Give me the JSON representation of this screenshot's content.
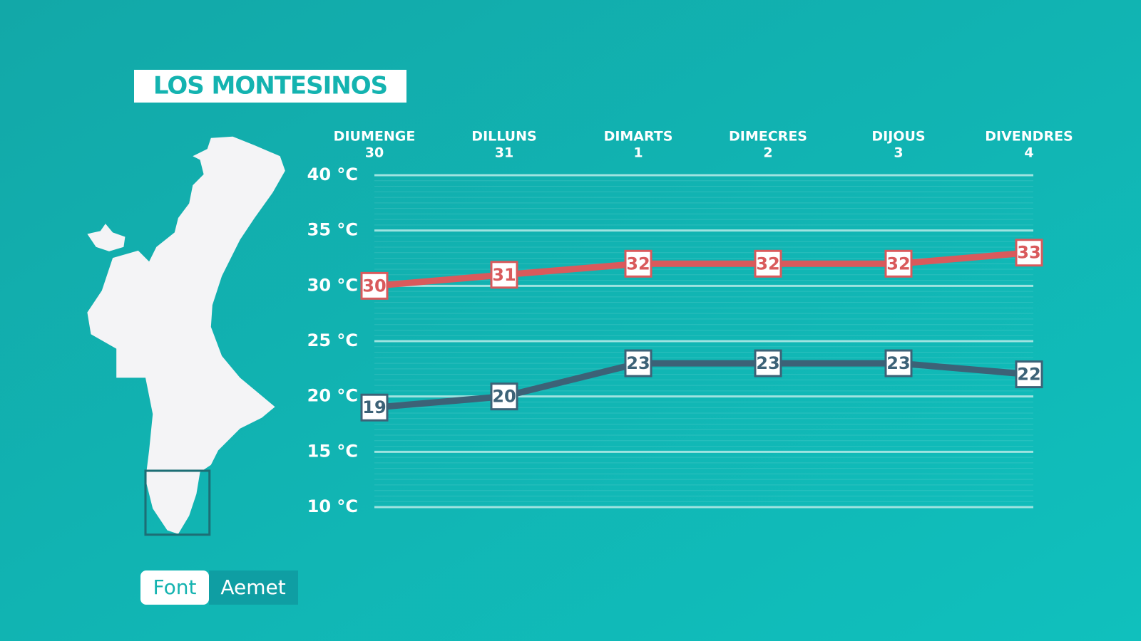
{
  "title": "LOS MONTESINOS",
  "source": {
    "label": "Font",
    "name": "Aemet"
  },
  "chart_data": {
    "type": "line",
    "categories": [
      "DIUMENGE",
      "DILLUNS",
      "DIMARTS",
      "DIMECRES",
      "DIJOUS",
      "DIVENDRES"
    ],
    "dates": [
      30,
      31,
      1,
      2,
      3,
      4
    ],
    "series": [
      {
        "color": "#d95a5c",
        "values": [
          30,
          31,
          32,
          32,
          32,
          33
        ]
      },
      {
        "color": "#3c6277",
        "values": [
          19,
          20,
          23,
          23,
          23,
          22
        ]
      }
    ],
    "ylim": [
      10,
      40
    ],
    "yticks": [
      {
        "value": 10,
        "label": "10 °C"
      },
      {
        "value": 15,
        "label": "15 °C"
      },
      {
        "value": 20,
        "label": "20 °C"
      },
      {
        "value": 25,
        "label": "25 °C"
      },
      {
        "value": 30,
        "label": "30 °C"
      },
      {
        "value": 35,
        "label": "35 °C"
      },
      {
        "value": 40,
        "label": "40 °C"
      }
    ],
    "grid": true
  }
}
